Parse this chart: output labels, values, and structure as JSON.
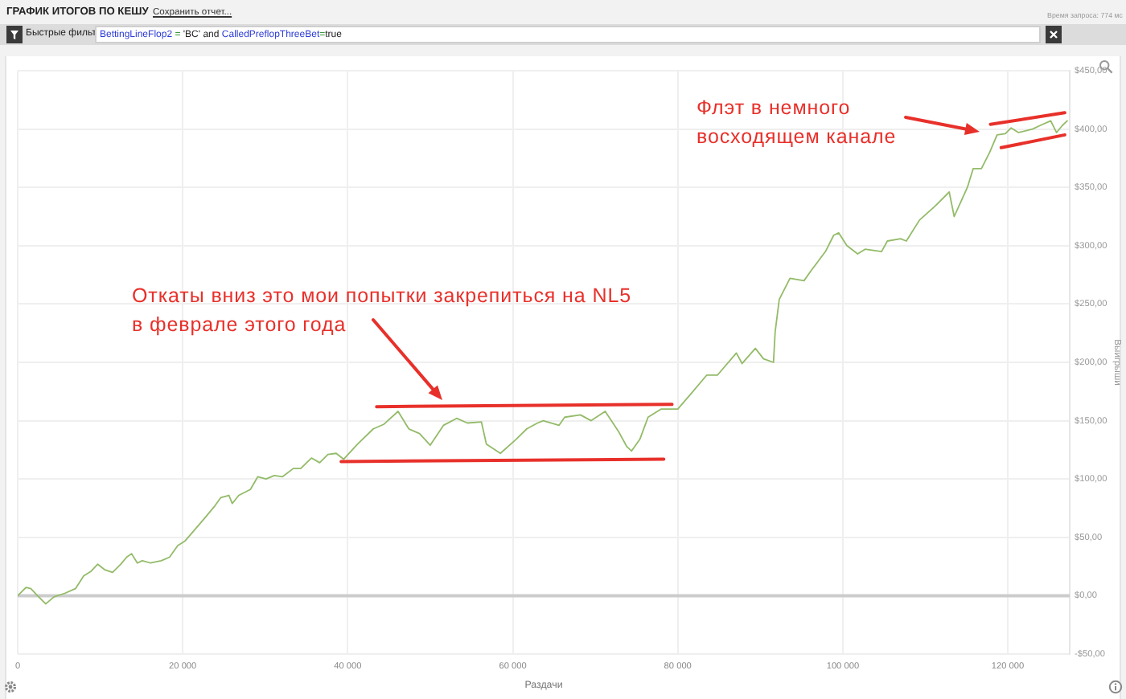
{
  "chart_data": {
    "type": "line",
    "title": "ГРАФИК ИТОГОВ ПО КЕШУ",
    "xlabel": "Раздачи",
    "ylabel": "Выигрыши",
    "annotations": [
      "Сохранить отчет...",
      "Время запроса: 774 мс",
      "Быстрые фильт",
      "BettingLineFlop2 = 'BC' and CalledPreflopThreeBet=true",
      "Откаты вниз это мои попытки закрепиться на NL5\nв феврале этого года",
      "Флэт в немного\nвосходящем канале"
    ],
    "x": [
      0,
      1000,
      1600,
      2400,
      3400,
      4400,
      5700,
      7000,
      8000,
      8900,
      9700,
      10600,
      11500,
      12500,
      13200,
      13800,
      14500,
      15100,
      16100,
      17400,
      18400,
      19400,
      20300,
      22600,
      23900,
      24600,
      25600,
      26000,
      26800,
      28200,
      29100,
      30100,
      31100,
      32100,
      33400,
      34300,
      35600,
      36600,
      37600,
      38600,
      39500,
      41200,
      43100,
      44400,
      46100,
      47400,
      48700,
      50000,
      51600,
      53200,
      54500,
      56200,
      56800,
      58500,
      60400,
      61700,
      63000,
      63700,
      65600,
      66300,
      68200,
      69500,
      71200,
      72800,
      73800,
      74400,
      75400,
      76400,
      78000,
      80000,
      81600,
      83500,
      84800,
      87100,
      87800,
      89400,
      90400,
      91600,
      91800,
      92300,
      93600,
      95300,
      96200,
      97900,
      98900,
      99500,
      100500,
      101800,
      102700,
      104700,
      105400,
      107000,
      107700,
      109300,
      111200,
      112900,
      113500,
      114200,
      115100,
      115800,
      116800,
      117800,
      118700,
      119700,
      120400,
      121300,
      123000,
      123900,
      125200,
      125900,
      126600,
      127200
    ],
    "series": [
      {
        "color": "#93bb68",
        "values": [
          0,
          7,
          6,
          0,
          -7,
          -1,
          2,
          6,
          17,
          21,
          27,
          22,
          20,
          27,
          33,
          36,
          28,
          30,
          28,
          30,
          33,
          43,
          47,
          66,
          77,
          84,
          86,
          79,
          86,
          91,
          102,
          100,
          103,
          102,
          109,
          109,
          118,
          114,
          121,
          122,
          117,
          130,
          143,
          147,
          158,
          143,
          139,
          129,
          146,
          152,
          148,
          149,
          130,
          122,
          134,
          143,
          148,
          150,
          146,
          153,
          155,
          150,
          158,
          141,
          128,
          124,
          134,
          153,
          160,
          160,
          173,
          189,
          189,
          208,
          199,
          212,
          203,
          200,
          226,
          254,
          272,
          270,
          279,
          295,
          309,
          311,
          300,
          293,
          297,
          295,
          304,
          306,
          304,
          322,
          334,
          346,
          325,
          336,
          350,
          366,
          366,
          380,
          395,
          396,
          401,
          397,
          400,
          403,
          407,
          397,
          403,
          407
        ]
      },
      {
        "color": "#e8302a",
        "x": [
          43500,
          79300
        ],
        "values": [
          162,
          164
        ]
      },
      {
        "color": "#e8302a",
        "x": [
          39200,
          78300
        ],
        "values": [
          115,
          117
        ]
      },
      {
        "color": "#e8302a",
        "x": [
          117900,
          126900
        ],
        "values": [
          404,
          414
        ]
      },
      {
        "color": "#e8302a",
        "x": [
          119200,
          126900
        ],
        "values": [
          384,
          395
        ]
      }
    ],
    "xlim": [
      0,
      127500
    ],
    "xticks": [
      0,
      {
        "value": 20000,
        "label": "20 000"
      },
      {
        "value": 40000,
        "label": "40 000"
      },
      {
        "value": 60000,
        "label": "60 000"
      },
      {
        "value": 80000,
        "label": "80 000"
      },
      {
        "value": 100000,
        "label": "100 000"
      },
      {
        "value": 120000,
        "label": "120 000"
      }
    ],
    "ylim": [
      -50,
      450
    ],
    "yticks": [
      {
        "value": -50,
        "label": "-$50,00"
      },
      {
        "value": 0,
        "label": "$0,00"
      },
      {
        "value": 50,
        "label": "$50,00"
      },
      {
        "value": 100,
        "label": "$100,00"
      },
      {
        "value": 150,
        "label": "$150,00"
      },
      {
        "value": 200,
        "label": "$200,00"
      },
      {
        "value": 250,
        "label": "$250,00"
      },
      {
        "value": 300,
        "label": "$300,00"
      },
      {
        "value": 350,
        "label": "$350,00"
      },
      {
        "value": 400,
        "label": "$400,00"
      },
      {
        "value": 450,
        "label": "$450,00"
      }
    ],
    "ref_lines": [
      {
        "axis": "y",
        "value": 0,
        "color": "#cccccc"
      }
    ],
    "grid": true,
    "marker": "none"
  }
}
